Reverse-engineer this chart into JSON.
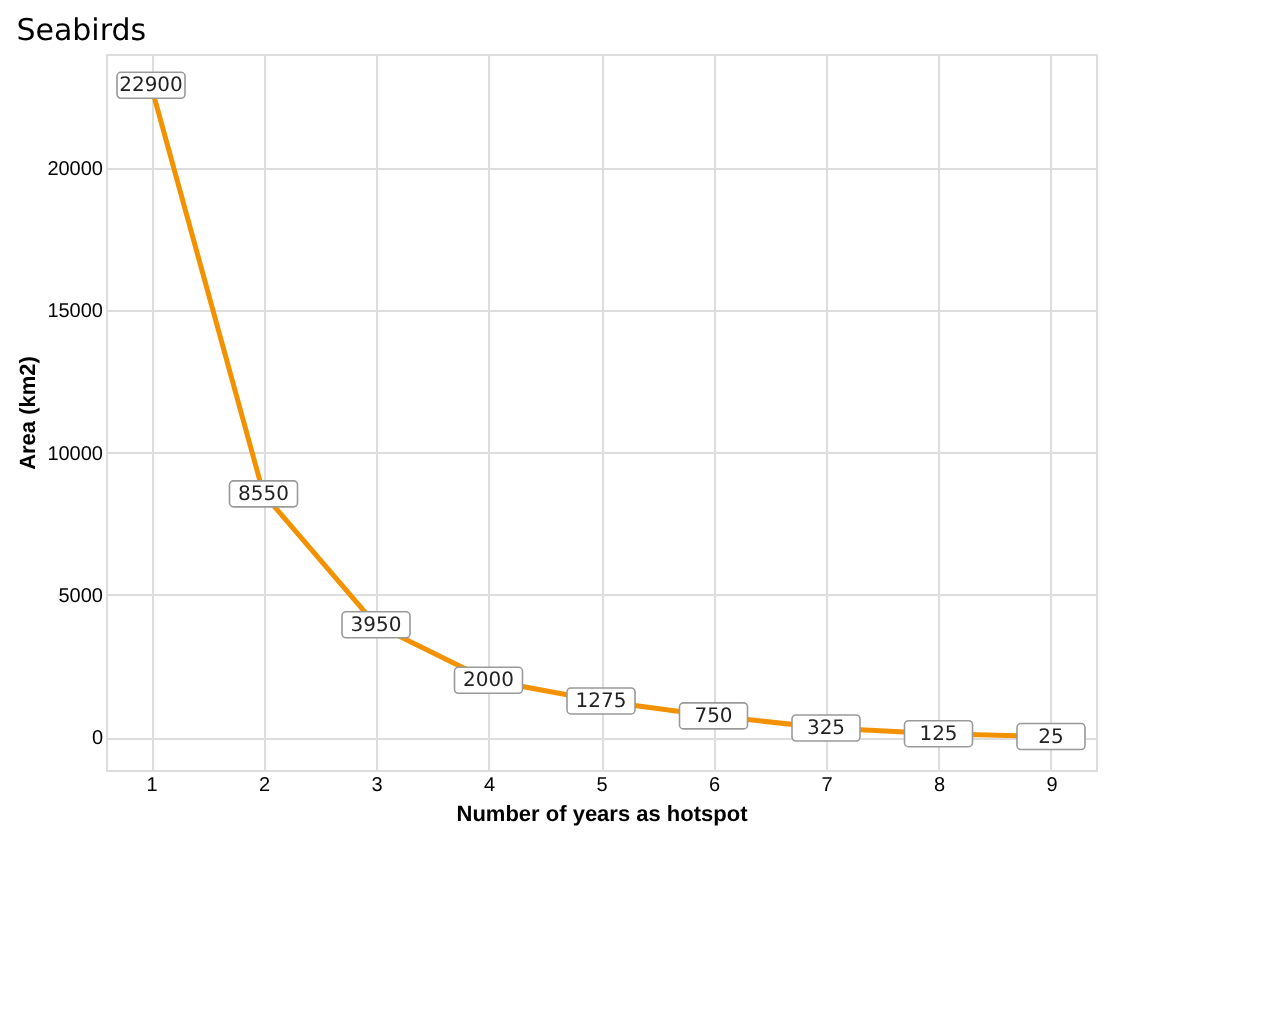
{
  "chart_data": {
    "type": "line",
    "title": "Seabirds",
    "xlabel": "Number of years as hotspot",
    "ylabel": "Area (km2)",
    "x": [
      1,
      2,
      3,
      4,
      5,
      6,
      7,
      8,
      9
    ],
    "series": [
      {
        "color": "#f39200",
        "values": [
          22900,
          8550,
          3950,
          2000,
          1275,
          750,
          325,
          125,
          25
        ]
      }
    ],
    "xlim": [
      0.6,
      9.4
    ],
    "xticks": [
      1,
      2,
      3,
      4,
      5,
      6,
      7,
      8,
      9
    ],
    "ylim": [
      -1150,
      24000
    ],
    "yticks": [
      0,
      5000,
      10000,
      15000,
      20000
    ],
    "grid": true,
    "data_labels": true,
    "marker": "square",
    "line_style": "solid"
  }
}
